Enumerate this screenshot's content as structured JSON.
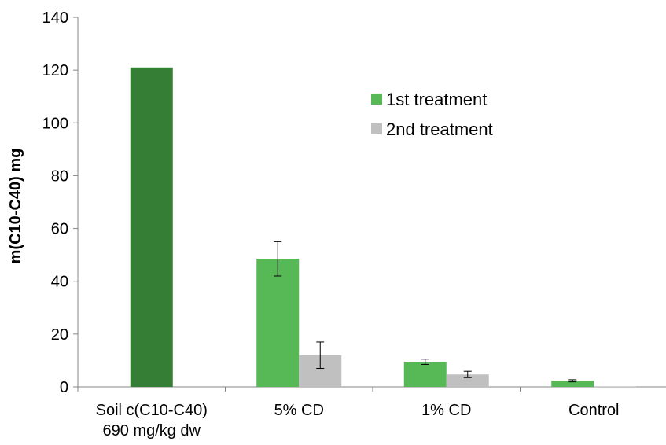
{
  "chart_data": {
    "type": "bar",
    "ylabel": "m(C10-C40) mg",
    "xlabel": "",
    "ylim": [
      0,
      140
    ],
    "yticks": [
      0,
      20,
      40,
      60,
      80,
      100,
      120,
      140
    ],
    "categories": [
      [
        "Soil c(C10-C40)",
        "690 mg/kg dw"
      ],
      [
        "5% CD"
      ],
      [
        "1% CD"
      ],
      [
        "Control"
      ]
    ],
    "soil_bar": {
      "value": 121.0,
      "color": "#357e36"
    },
    "series": [
      {
        "name": "1st treatment",
        "color": "#57b856",
        "values": [
          null,
          48.5,
          9.5,
          2.3
        ],
        "errors": [
          null,
          6.5,
          1.0,
          0.4
        ]
      },
      {
        "name": "2nd treatment",
        "color": "#c0c0c0",
        "values": [
          null,
          12.0,
          4.7,
          0.2
        ],
        "errors": [
          null,
          5.0,
          1.2,
          0.0
        ]
      }
    ],
    "legend_position": "upper-right inside plot",
    "grid": false
  }
}
